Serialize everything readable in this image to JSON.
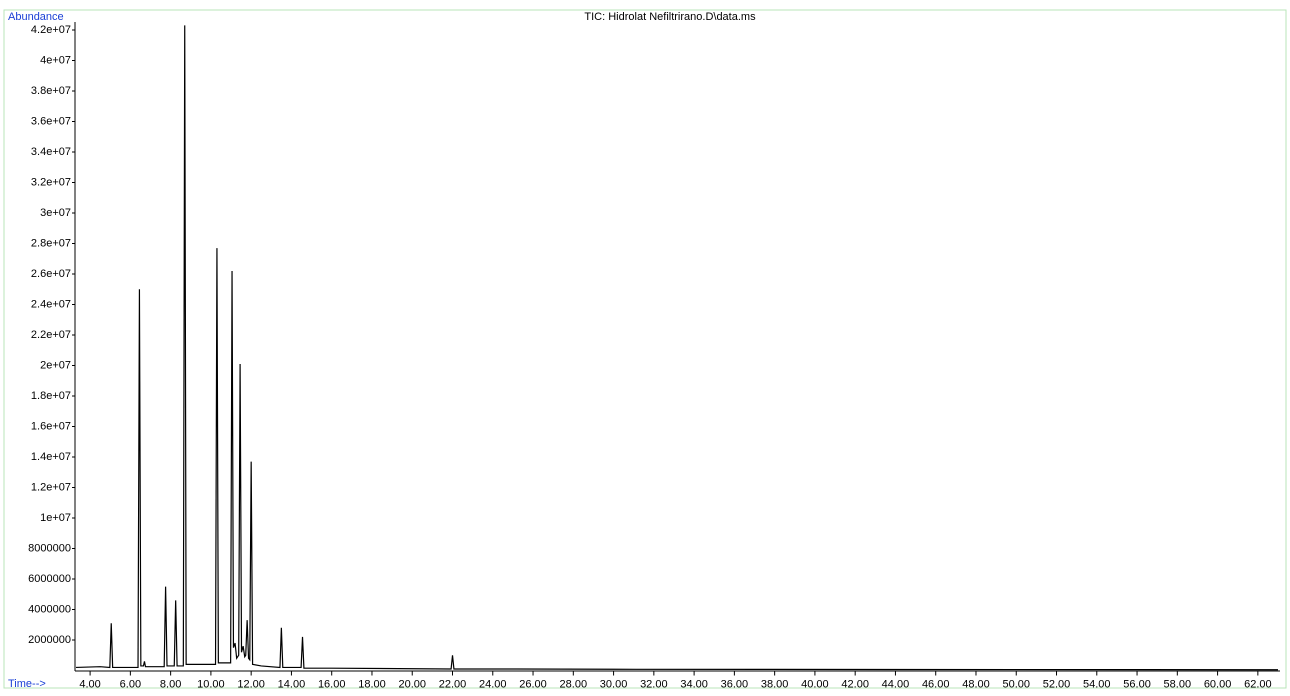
{
  "chart_data": {
    "type": "line",
    "title": "TIC: Hidrolat Nefiltrirano.D\\data.ms",
    "y_label": "Abundance",
    "x_label": "Time-->",
    "x": [
      3.3,
      4.5,
      4.98,
      5.05,
      5.12,
      6.0,
      6.38,
      6.45,
      6.52,
      6.65,
      6.7,
      6.75,
      7.68,
      7.75,
      7.82,
      8.18,
      8.25,
      8.32,
      8.63,
      8.7,
      8.77,
      10.23,
      10.3,
      10.37,
      10.98,
      11.05,
      11.12,
      11.2,
      11.28,
      11.38,
      11.45,
      11.52,
      11.6,
      11.68,
      11.73,
      11.8,
      11.87,
      11.93,
      12.0,
      12.07,
      12.5,
      13.43,
      13.5,
      13.57,
      14.48,
      14.55,
      14.62,
      16.0,
      21.93,
      22.0,
      22.07,
      25.2,
      30,
      63
    ],
    "series": [
      {
        "name": "TIC",
        "color": "#000000",
        "values": [
          200000,
          250000,
          200000,
          3100000,
          200000,
          200000,
          200000,
          25000000,
          300000,
          300000,
          600000,
          250000,
          250000,
          5500000,
          300000,
          300000,
          4600000,
          300000,
          300000,
          42300000,
          400000,
          400000,
          27700000,
          500000,
          500000,
          26200000,
          1500000,
          1800000,
          800000,
          1000000,
          20100000,
          1200000,
          1600000,
          900000,
          1000000,
          3300000,
          800000,
          700000,
          13700000,
          400000,
          300000,
          200000,
          2800000,
          200000,
          200000,
          2200000,
          150000,
          150000,
          100000,
          1000000,
          100000,
          100000,
          80000,
          50000
        ]
      }
    ],
    "xlim": [
      3.25,
      63.1
    ],
    "ylim": [
      0,
      43000000
    ],
    "xticks": [
      {
        "value": 4,
        "label": "4.00"
      },
      {
        "value": 6,
        "label": "6.00"
      },
      {
        "value": 8,
        "label": "8.00"
      },
      {
        "value": 10,
        "label": "10.00"
      },
      {
        "value": 12,
        "label": "12.00"
      },
      {
        "value": 14,
        "label": "14.00"
      },
      {
        "value": 16,
        "label": "16.00"
      },
      {
        "value": 18,
        "label": "18.00"
      },
      {
        "value": 20,
        "label": "20.00"
      },
      {
        "value": 22,
        "label": "22.00"
      },
      {
        "value": 24,
        "label": "24.00"
      },
      {
        "value": 26,
        "label": "26.00"
      },
      {
        "value": 28,
        "label": "28.00"
      },
      {
        "value": 30,
        "label": "30.00"
      },
      {
        "value": 32,
        "label": "32.00"
      },
      {
        "value": 34,
        "label": "34.00"
      },
      {
        "value": 36,
        "label": "36.00"
      },
      {
        "value": 38,
        "label": "38.00"
      },
      {
        "value": 40,
        "label": "40.00"
      },
      {
        "value": 42,
        "label": "42.00"
      },
      {
        "value": 44,
        "label": "44.00"
      },
      {
        "value": 46,
        "label": "46.00"
      },
      {
        "value": 48,
        "label": "48.00"
      },
      {
        "value": 50,
        "label": "50.00"
      },
      {
        "value": 52,
        "label": "52.00"
      },
      {
        "value": 54,
        "label": "54.00"
      },
      {
        "value": 56,
        "label": "56.00"
      },
      {
        "value": 58,
        "label": "58.00"
      },
      {
        "value": 60,
        "label": "60.00"
      },
      {
        "value": 62,
        "label": "62.00"
      }
    ],
    "yticks": [
      2000000,
      4000000,
      6000000,
      8000000,
      {
        "value": 10000000,
        "label": "1e+07"
      },
      {
        "value": 12000000,
        "label": "1.2e+07"
      },
      {
        "value": 14000000,
        "label": "1.4e+07"
      },
      {
        "value": 16000000,
        "label": "1.6e+07"
      },
      {
        "value": 18000000,
        "label": "1.8e+07"
      },
      {
        "value": 20000000,
        "label": "2e+07"
      },
      {
        "value": 22000000,
        "label": "2.2e+07"
      },
      {
        "value": 24000000,
        "label": "2.4e+07"
      },
      {
        "value": 26000000,
        "label": "2.6e+07"
      },
      {
        "value": 28000000,
        "label": "2.8e+07"
      },
      {
        "value": 30000000,
        "label": "3e+07"
      },
      {
        "value": 32000000,
        "label": "3.2e+07"
      },
      {
        "value": 34000000,
        "label": "3.4e+07"
      },
      {
        "value": 36000000,
        "label": "3.6e+07"
      },
      {
        "value": 38000000,
        "label": "3.8e+07"
      },
      {
        "value": 40000000,
        "label": "4e+07"
      },
      {
        "value": 42000000,
        "label": "4.2e+07"
      }
    ],
    "grid": false
  }
}
